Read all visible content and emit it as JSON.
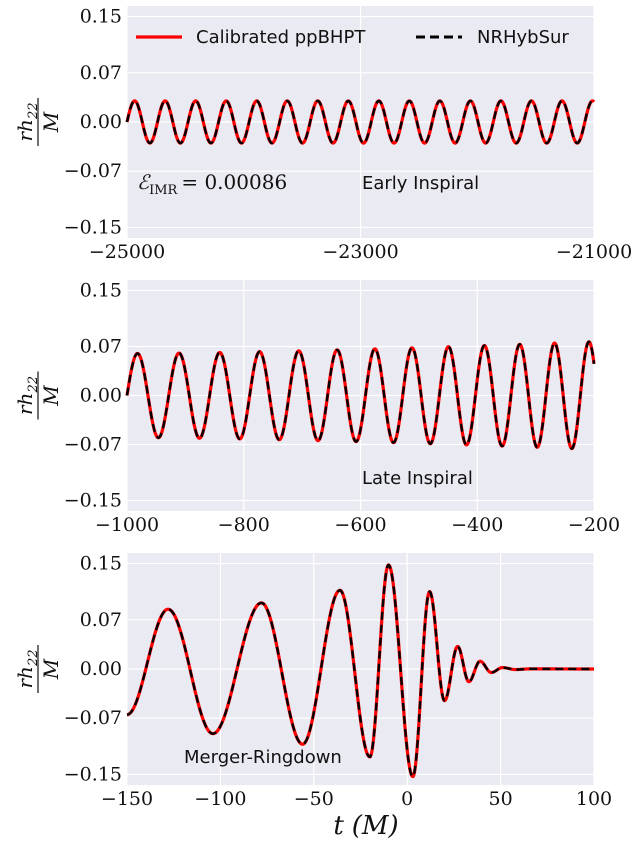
{
  "chart_data": [
    {
      "type": "line",
      "panel": "early",
      "xlim": [
        -25000,
        -21000
      ],
      "ylim": [
        -0.165,
        0.165
      ],
      "xticks": [
        "-25000",
        "-23000",
        "-21000"
      ],
      "xtick_values": [
        -25000,
        -23000,
        -21000
      ],
      "yticks": [
        "0.15",
        "0.07",
        "0.00",
        "-0.07",
        "-0.15"
      ],
      "ytick_values": [
        0.15,
        0.07,
        0.0,
        -0.07,
        -0.15
      ],
      "ylabel_num": "rh",
      "ylabel_sub": "22",
      "ylabel_den": "M",
      "annotation": "Early Inspiral",
      "error_label": "ℰ",
      "error_sub": "IMR",
      "error_value": "= 0.00086",
      "wave": {
        "amplitude": 0.03,
        "cycles": 15.3,
        "phase": 0.0
      },
      "series": [
        {
          "name": "Calibrated ppBHPT",
          "color": "#ff0000",
          "style": "solid"
        },
        {
          "name": "NRHybSur",
          "color": "#000000",
          "style": "dashed"
        }
      ]
    },
    {
      "type": "line",
      "panel": "late",
      "xlim": [
        -1000,
        -200
      ],
      "ylim": [
        -0.165,
        0.165
      ],
      "xticks": [
        "-1000",
        "-800",
        "-600",
        "-400",
        "-200"
      ],
      "xtick_values": [
        -1000,
        -800,
        -600,
        -400,
        -200
      ],
      "yticks": [
        "0.15",
        "0.07",
        "0.00",
        "-0.07",
        "-0.15"
      ],
      "ytick_values": [
        0.15,
        0.07,
        0.0,
        -0.07,
        -0.15
      ],
      "ylabel_num": "rh",
      "ylabel_sub": "22",
      "ylabel_den": "M",
      "annotation": "Late Inspiral",
      "wave": {
        "amp_start": 0.06,
        "amp_end": 0.077,
        "cycles": 12.4,
        "phase": 0.0
      }
    },
    {
      "type": "line",
      "panel": "merger",
      "xlim": [
        -150,
        100
      ],
      "ylim": [
        -0.165,
        0.165
      ],
      "xticks": [
        "-150",
        "-100",
        "-50",
        "0",
        "50",
        "100"
      ],
      "xtick_values": [
        -150,
        -100,
        -50,
        0,
        50,
        100
      ],
      "yticks": [
        "0.15",
        "0.07",
        "0.00",
        "-0.07",
        "-0.15"
      ],
      "ytick_values": [
        0.15,
        0.07,
        0.0,
        -0.07,
        -0.15
      ],
      "ylabel_num": "rh",
      "ylabel_sub": "22",
      "ylabel_den": "M",
      "xlabel_var": "t",
      "xlabel_unit": "(M)",
      "annotation": "Merger-Ringdown",
      "extrema": [
        [
          -150,
          -0.065
        ],
        [
          -128,
          0.085
        ],
        [
          -104,
          -0.092
        ],
        [
          -78,
          0.094
        ],
        [
          -56,
          -0.107
        ],
        [
          -36,
          0.112
        ],
        [
          -20,
          -0.125
        ],
        [
          -10,
          0.148
        ],
        [
          3,
          -0.153
        ],
        [
          12,
          0.11
        ],
        [
          20,
          -0.045
        ],
        [
          27,
          0.032
        ],
        [
          33,
          -0.018
        ],
        [
          39,
          0.011
        ],
        [
          45,
          -0.005
        ],
        [
          51,
          0.002
        ],
        [
          58,
          -0.0008
        ],
        [
          66,
          0.0002
        ],
        [
          100,
          0.0
        ]
      ]
    }
  ]
}
